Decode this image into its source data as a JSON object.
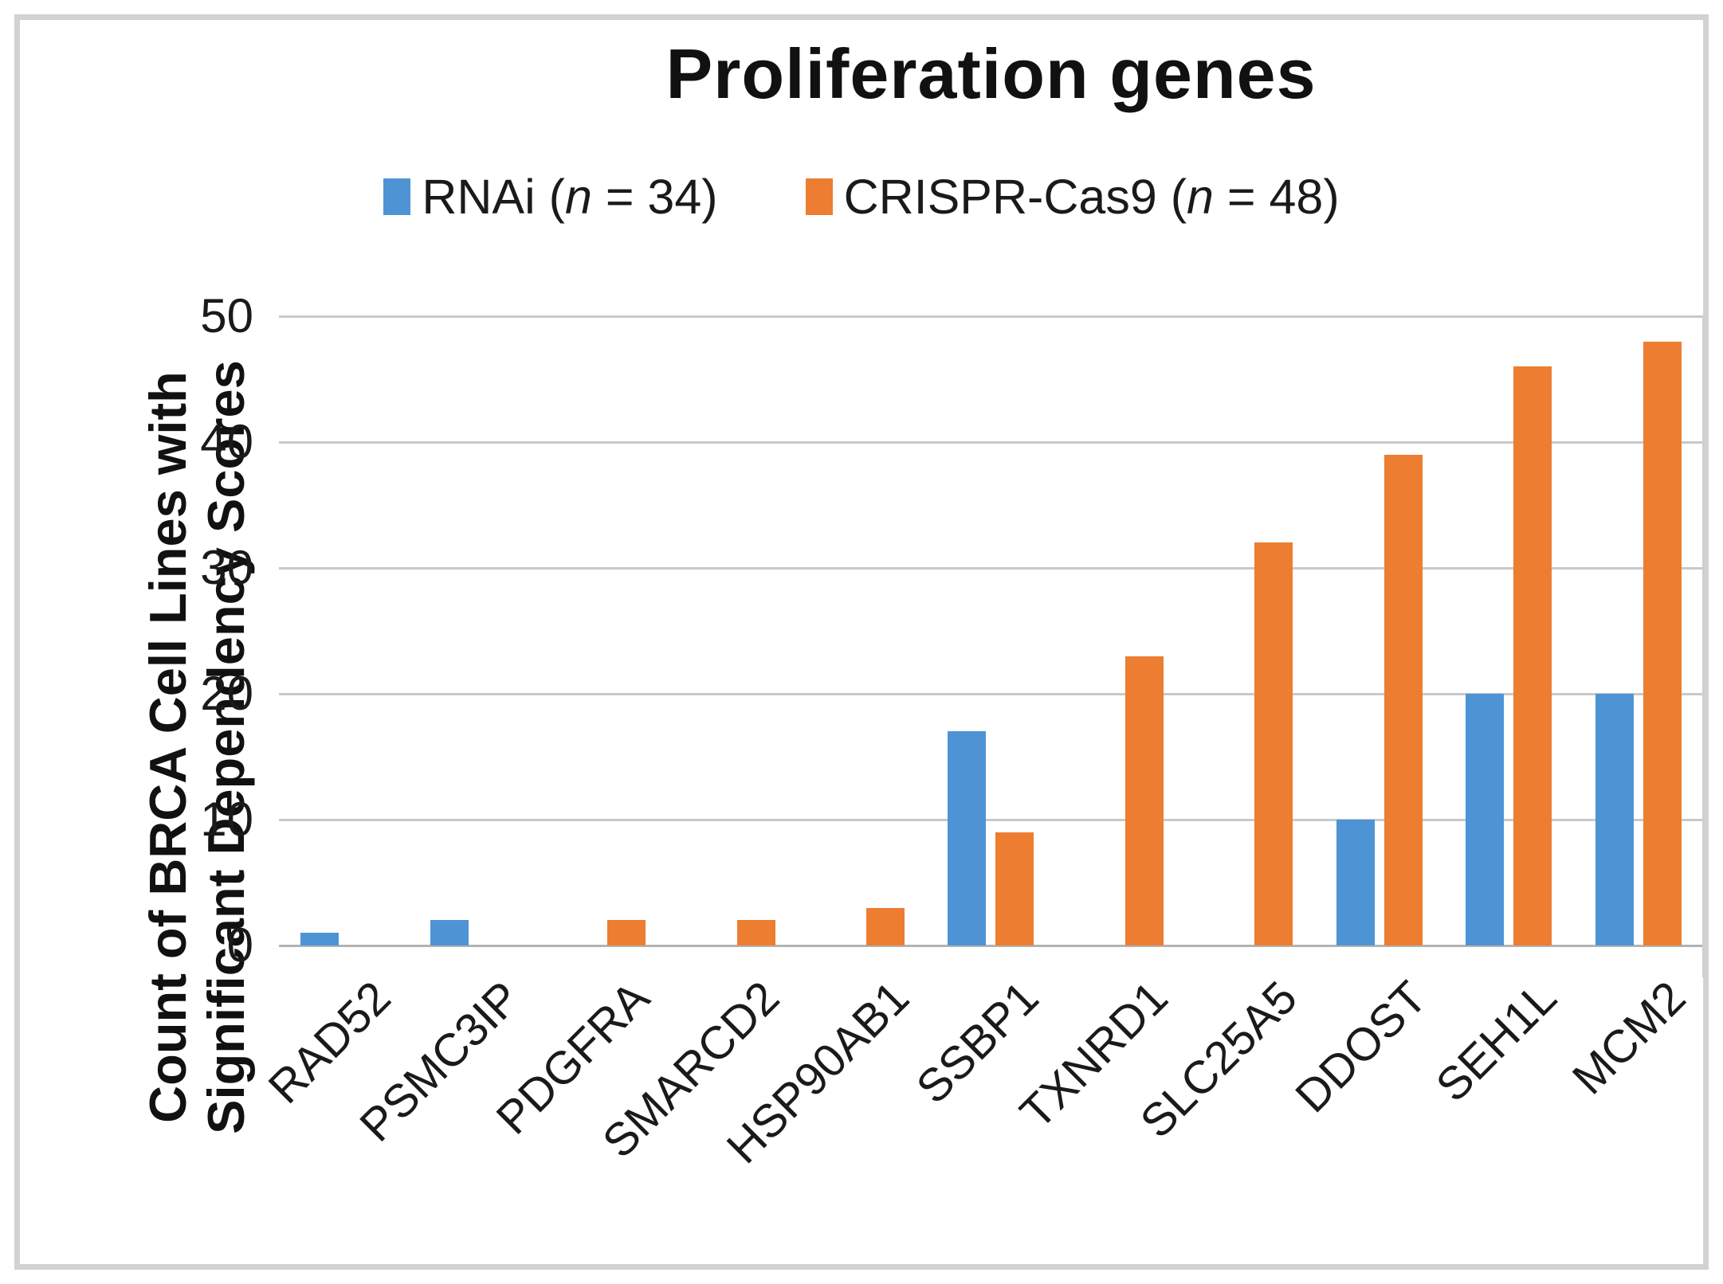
{
  "figure": {
    "title": "Proliferation genes"
  },
  "legend": {
    "items": [
      {
        "prefix": "RNAi (",
        "var": "n",
        "suffix": " = 34)"
      },
      {
        "prefix": "CRISPR-Cas9 (",
        "var": "n",
        "suffix": " = 48)"
      }
    ]
  },
  "axis": {
    "y_title_line1": "Count of BRCA Cell Lines with",
    "y_title_line2": "Significant Dependency Scores"
  },
  "chart_data": {
    "type": "bar",
    "title": "Proliferation genes",
    "categories": [
      "RAD52",
      "PSMC3IP",
      "PDGFRA",
      "SMARCD2",
      "HSP90AB1",
      "SSBP1",
      "TXNRD1",
      "SLC25A5",
      "DDOST",
      "SEH1L",
      "MCM2"
    ],
    "series": [
      {
        "name": "RNAi (n = 34)",
        "color": "#4e94d4",
        "values": [
          1,
          2,
          0,
          0,
          0,
          17,
          0,
          0,
          10,
          20,
          20
        ]
      },
      {
        "name": "CRISPR-Cas9 (n = 48)",
        "color": "#ed7d31",
        "values": [
          0,
          0,
          2,
          2,
          3,
          9,
          23,
          32,
          39,
          46,
          48
        ]
      }
    ],
    "xlabel": "",
    "ylabel": "Count of BRCA Cell Lines with Significant Dependency Scores",
    "yticks": [
      0,
      10,
      20,
      30,
      40,
      50
    ],
    "ylim": [
      0,
      50
    ],
    "grid": true,
    "legend_position": "top",
    "gridline_color": "#c9c9c9"
  }
}
